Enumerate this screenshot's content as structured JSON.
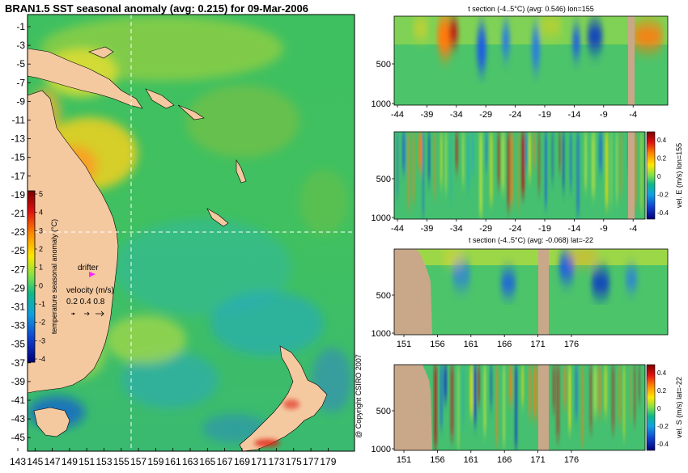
{
  "title": "BRAN1.5 SST seasonal anomaly (avg: 0.215) for 09-Mar-2006",
  "copyright": "@ Copyright CSIRO 2007",
  "colors": {
    "land": "#f4c9a0",
    "section_land": "#c8a888",
    "warm": "#ff7a10",
    "cool": "#2a7de0"
  },
  "map": {
    "lat_ticks": [
      "-1",
      "-3",
      "-5",
      "-7",
      "-9",
      "-11",
      "-13",
      "-15",
      "-17",
      "-19",
      "-21",
      "-23",
      "-25",
      "-27",
      "-29",
      "-31",
      "-33",
      "-35",
      "-37",
      "-39",
      "-41",
      "-43",
      "-45"
    ],
    "lon_ticks": [
      "143",
      "145",
      "147",
      "149",
      "151",
      "153",
      "155",
      "157",
      "159",
      "161",
      "163",
      "165",
      "167",
      "169",
      "171",
      "173",
      "175",
      "177",
      "179"
    ],
    "colorbar": {
      "label": "temperature seasonal anomaly (°C)",
      "ticks": [
        "5",
        "4",
        "3",
        "2",
        "1",
        "0",
        "-1",
        "-2",
        "-3",
        "-4"
      ]
    },
    "drifter_label": "drifter",
    "velocity": {
      "label": "velocity (m/s)",
      "scale": "0.2 0.4 0.8"
    }
  },
  "panels": [
    {
      "title": "t section (-4..5°C) (avg: 0.546) lon=155",
      "y_ticks": [
        "500",
        "1000"
      ],
      "x_ticks": [
        "-44",
        "-39",
        "-34",
        "-29",
        "-24",
        "-19",
        "-14",
        "-9",
        "-4"
      ],
      "side_label": ""
    },
    {
      "title": "",
      "y_ticks": [
        "500",
        "1000"
      ],
      "x_ticks": [
        "-44",
        "-39",
        "-34",
        "-29",
        "-24",
        "-19",
        "-14",
        "-9",
        "-4"
      ],
      "side_label": "vel. E (m/s) lon=155",
      "cb_ticks": [
        "0.4",
        "0.2",
        "0",
        "-0.2",
        "-0.4"
      ]
    },
    {
      "title": "t section (-4..5°C) (avg: -0.068) lat=-22",
      "y_ticks": [
        "500",
        "1000"
      ],
      "x_ticks": [
        "151",
        "156",
        "161",
        "166",
        "171",
        "176"
      ],
      "side_label": ""
    },
    {
      "title": "",
      "y_ticks": [
        "500",
        "1000"
      ],
      "x_ticks": [
        "151",
        "156",
        "161",
        "166",
        "171",
        "176"
      ],
      "side_label": "vel. S (m/s) lat=-22",
      "cb_ticks": [
        "0.4",
        "0.2",
        "0",
        "-0.2",
        "-0.4"
      ]
    }
  ]
}
